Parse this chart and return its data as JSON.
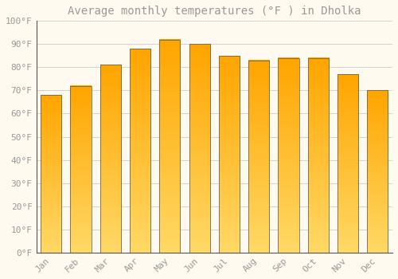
{
  "title": "Average monthly temperatures (°F ) in Dholka",
  "months": [
    "Jan",
    "Feb",
    "Mar",
    "Apr",
    "May",
    "Jun",
    "Jul",
    "Aug",
    "Sep",
    "Oct",
    "Nov",
    "Dec"
  ],
  "values": [
    68,
    72,
    81,
    88,
    92,
    90,
    85,
    83,
    84,
    84,
    77,
    70
  ],
  "bar_color": "#FFA500",
  "bar_gradient_light": "#FFD966",
  "background_color": "#FFFAF0",
  "grid_color": "#CCCCCC",
  "text_color": "#999999",
  "border_color": "#555555",
  "ylim": [
    0,
    100
  ],
  "ytick_step": 10,
  "title_fontsize": 10,
  "tick_fontsize": 8
}
